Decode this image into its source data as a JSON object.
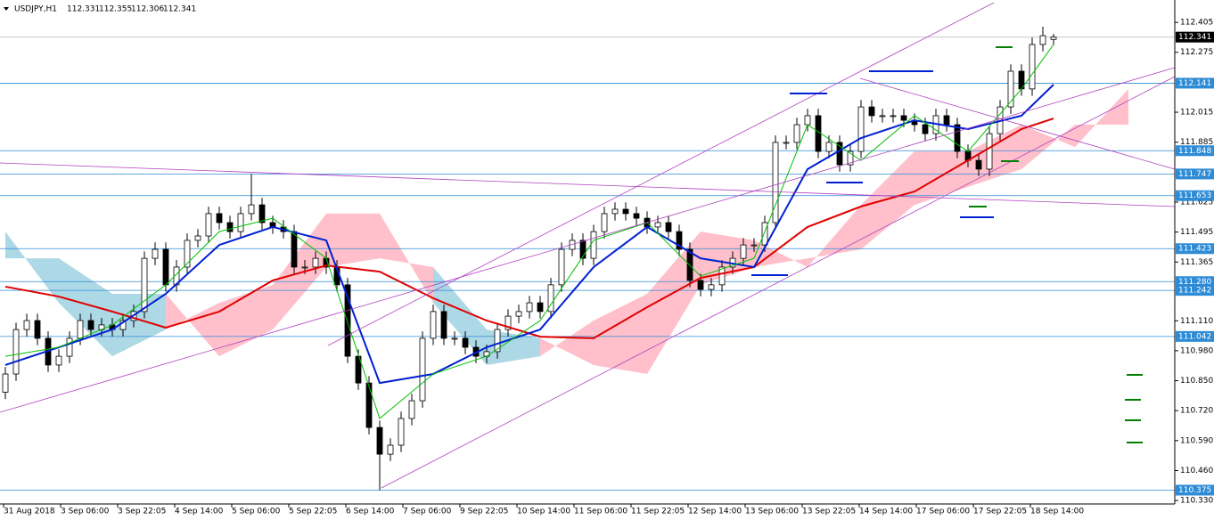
{
  "chart_data": {
    "type": "candlestick",
    "symbol": "USDJPY,H1",
    "ylim": [
      110.315,
      112.502
    ],
    "yticks": [
      112.405,
      112.275,
      112.015,
      111.885,
      111.625,
      111.495,
      111.365,
      {
        "value": 111.11,
        "label": "111.110"
      },
      {
        "value": 110.98,
        "label": "110.980"
      },
      {
        "value": 110.85,
        "label": "110.850"
      },
      {
        "value": 110.72,
        "label": "110.720"
      },
      {
        "value": 110.59,
        "label": "110.590"
      },
      {
        "value": 110.46,
        "label": "110.460"
      },
      {
        "value": 110.33,
        "label": "110.330"
      }
    ],
    "xlabels": [
      "31 Aug 2018",
      "3 Sep 06:00",
      "3 Sep 22:05",
      "4 Sep 14:00",
      "5 Sep 06:00",
      "5 Sep 22:05",
      "6 Sep 14:00",
      "7 Sep 06:00",
      "9 Sep 22:05",
      "10 Sep 14:00",
      "11 Sep 06:00",
      "11 Sep 22:05",
      "12 Sep 14:00",
      "13 Sep 06:00",
      "13 Sep 22:05",
      "14 Sep 14:00",
      "17 Sep 06:00",
      "17 Sep 22:05",
      "18 Sep 14:00"
    ],
    "up_color": "#ffffff",
    "down_color": "#000000",
    "ohlc": [
      [
        110.8,
        110.909,
        110.77,
        110.879
      ],
      [
        110.879,
        111.102,
        110.849,
        111.072
      ],
      [
        111.072,
        111.141,
        111.042,
        111.111
      ],
      [
        111.111,
        111.141,
        111.004,
        111.034
      ],
      [
        111.034,
        111.064,
        110.888,
        110.918
      ],
      [
        110.918,
        110.986,
        110.888,
        110.956
      ],
      [
        110.956,
        111.064,
        110.926,
        111.034
      ],
      [
        111.034,
        111.141,
        111.004,
        111.111
      ],
      [
        111.111,
        111.141,
        111.042,
        111.072
      ],
      [
        111.072,
        111.122,
        111.042,
        111.092
      ],
      [
        111.092,
        111.122,
        111.042,
        111.072
      ],
      [
        111.072,
        111.141,
        111.042,
        111.111
      ],
      [
        111.111,
        111.18,
        111.081,
        111.15
      ],
      [
        111.15,
        111.411,
        111.12,
        111.381
      ],
      [
        111.381,
        111.45,
        111.351,
        111.42
      ],
      [
        111.42,
        111.45,
        111.236,
        111.266
      ],
      [
        111.266,
        111.373,
        111.236,
        111.343
      ],
      [
        111.343,
        111.489,
        111.313,
        111.459
      ],
      [
        111.459,
        111.508,
        111.429,
        111.478
      ],
      [
        111.478,
        111.605,
        111.448,
        111.575
      ],
      [
        111.575,
        111.605,
        111.506,
        111.536
      ],
      [
        111.536,
        111.566,
        111.467,
        111.497
      ],
      [
        111.497,
        111.605,
        111.467,
        111.575
      ],
      [
        111.575,
        111.747,
        111.545,
        111.613
      ],
      [
        111.613,
        111.643,
        111.506,
        111.536
      ],
      [
        111.536,
        111.566,
        111.487,
        111.517
      ],
      [
        111.517,
        111.547,
        111.467,
        111.497
      ],
      [
        111.497,
        111.527,
        111.313,
        111.343
      ],
      [
        111.343,
        111.373,
        111.313,
        111.343
      ],
      [
        111.343,
        111.411,
        111.313,
        111.381
      ],
      [
        111.381,
        111.411,
        111.313,
        111.343
      ],
      [
        111.343,
        111.373,
        111.236,
        111.266
      ],
      [
        111.266,
        111.296,
        110.926,
        110.956
      ],
      [
        110.956,
        110.986,
        110.81,
        110.84
      ],
      [
        110.84,
        110.87,
        110.617,
        110.647
      ],
      [
        110.647,
        110.677,
        110.375,
        110.531
      ],
      [
        110.531,
        110.6,
        110.501,
        110.57
      ],
      [
        110.57,
        110.716,
        110.54,
        110.686
      ],
      [
        110.686,
        110.793,
        110.656,
        110.763
      ],
      [
        110.763,
        111.064,
        110.733,
        111.034
      ],
      [
        111.034,
        111.18,
        111.004,
        111.15
      ],
      [
        111.15,
        111.18,
        111.004,
        111.034
      ],
      [
        111.034,
        111.064,
        111.004,
        111.034
      ],
      [
        111.034,
        111.064,
        110.965,
        110.995
      ],
      [
        110.995,
        111.025,
        110.926,
        110.956
      ],
      [
        110.956,
        111.006,
        110.926,
        110.976
      ],
      [
        110.976,
        111.102,
        110.946,
        111.072
      ],
      [
        111.072,
        111.16,
        111.042,
        111.13
      ],
      [
        111.13,
        111.18,
        111.1,
        111.15
      ],
      [
        111.15,
        111.218,
        111.12,
        111.188
      ],
      [
        111.188,
        111.218,
        111.12,
        111.15
      ],
      [
        111.15,
        111.296,
        111.12,
        111.266
      ],
      [
        111.266,
        111.45,
        111.236,
        111.42
      ],
      [
        111.42,
        111.489,
        111.39,
        111.459
      ],
      [
        111.459,
        111.489,
        111.351,
        111.381
      ],
      [
        111.381,
        111.527,
        111.351,
        111.497
      ],
      [
        111.497,
        111.605,
        111.467,
        111.575
      ],
      [
        111.575,
        111.624,
        111.545,
        111.594
      ],
      [
        111.594,
        111.624,
        111.545,
        111.575
      ],
      [
        111.575,
        111.605,
        111.525,
        111.555
      ],
      [
        111.555,
        111.585,
        111.487,
        111.517
      ],
      [
        111.517,
        111.566,
        111.487,
        111.536
      ],
      [
        111.536,
        111.566,
        111.467,
        111.497
      ],
      [
        111.497,
        111.527,
        111.39,
        111.42
      ],
      [
        111.42,
        111.45,
        111.255,
        111.285
      ],
      [
        111.285,
        111.315,
        111.216,
        111.246
      ],
      [
        111.246,
        111.296,
        111.216,
        111.266
      ],
      [
        111.266,
        111.373,
        111.236,
        111.343
      ],
      [
        111.343,
        111.411,
        111.313,
        111.381
      ],
      [
        111.381,
        111.469,
        111.351,
        111.439
      ],
      [
        111.439,
        111.469,
        111.409,
        111.439
      ],
      [
        111.439,
        111.566,
        111.409,
        111.536
      ],
      [
        111.536,
        111.914,
        111.506,
        111.884
      ],
      [
        111.884,
        111.914,
        111.854,
        111.884
      ],
      [
        111.884,
        111.991,
        111.854,
        111.961
      ],
      [
        111.961,
        112.03,
        111.931,
        112.0
      ],
      [
        112.0,
        112.03,
        111.815,
        111.845
      ],
      [
        111.845,
        111.914,
        111.815,
        111.884
      ],
      [
        111.884,
        111.914,
        111.757,
        111.787
      ],
      [
        111.787,
        111.875,
        111.757,
        111.845
      ],
      [
        111.845,
        112.068,
        111.815,
        112.038
      ],
      [
        112.038,
        112.068,
        111.97,
        112.0
      ],
      [
        112.0,
        112.03,
        111.97,
        112.0
      ],
      [
        112.0,
        112.03,
        111.97,
        112.0
      ],
      [
        112.0,
        112.03,
        111.95,
        111.98
      ],
      [
        111.98,
        112.01,
        111.931,
        111.961
      ],
      [
        111.961,
        111.991,
        111.892,
        111.922
      ],
      [
        111.922,
        112.03,
        111.892,
        112.0
      ],
      [
        112.0,
        112.03,
        111.931,
        111.961
      ],
      [
        111.961,
        111.991,
        111.815,
        111.845
      ],
      [
        111.845,
        111.875,
        111.776,
        111.806
      ],
      [
        111.806,
        111.836,
        111.738,
        111.768
      ],
      [
        111.768,
        111.952,
        111.738,
        111.922
      ],
      [
        111.922,
        112.068,
        111.892,
        112.038
      ],
      [
        112.038,
        112.223,
        112.008,
        112.193
      ],
      [
        112.193,
        112.223,
        112.086,
        112.116
      ],
      [
        112.116,
        112.339,
        112.086,
        112.309
      ],
      [
        112.309,
        112.386,
        112.279,
        112.347
      ],
      [
        112.331,
        112.355,
        112.306,
        112.341
      ]
    ],
    "cloud": {
      "x": [
        0,
        5,
        10,
        15,
        20,
        25,
        30,
        35,
        40,
        45,
        50,
        55,
        60,
        65,
        70,
        75,
        80,
        85,
        90,
        95,
        100,
        105
      ],
      "span_a": [
        111.497,
        111.188,
        110.956,
        111.072,
        111.188,
        111.266,
        111.575,
        111.575,
        111.188,
        110.918,
        110.956,
        111.111,
        111.227,
        111.497,
        111.459,
        111.343,
        111.613,
        111.845,
        111.845,
        111.961,
        111.864,
        112.116
      ],
      "span_b": [
        111.381,
        111.381,
        111.227,
        111.227,
        110.956,
        111.072,
        111.343,
        111.381,
        111.343,
        111.072,
        111.034,
        110.918,
        110.879,
        111.266,
        111.343,
        111.381,
        111.42,
        111.613,
        111.691,
        111.768,
        111.961,
        111.961
      ],
      "up_color": "#ffc0cb",
      "down_color": "#add8e6"
    },
    "series": [
      {
        "color": "#e00000",
        "x": [
          0,
          5,
          10,
          15,
          20,
          25,
          30,
          35,
          40,
          45,
          50,
          55,
          60,
          65,
          70,
          75,
          80,
          85,
          90,
          95,
          98
        ],
        "values": [
          111.258,
          111.215,
          111.15,
          111.08,
          111.15,
          111.285,
          111.35,
          111.323,
          111.208,
          111.111,
          111.041,
          111.034,
          111.169,
          111.296,
          111.343,
          111.517,
          111.606,
          111.671,
          111.806,
          111.942,
          111.988
        ]
      },
      {
        "color": "#0020d0",
        "x": [
          0,
          5,
          10,
          15,
          20,
          25,
          30,
          35,
          40,
          45,
          50,
          55,
          60,
          65,
          70,
          75,
          80,
          85,
          90,
          95,
          98
        ],
        "values": [
          110.918,
          110.995,
          111.072,
          111.227,
          111.439,
          111.517,
          111.459,
          110.84,
          110.879,
          110.995,
          111.072,
          111.343,
          111.517,
          111.381,
          111.343,
          111.768,
          111.903,
          111.98,
          111.942,
          112.0,
          112.135
        ]
      },
      {
        "color": "#00c000",
        "x": [
          0,
          5,
          10,
          15,
          20,
          25,
          30,
          35,
          40,
          45,
          50,
          55,
          60,
          65,
          70,
          75,
          80,
          85,
          90,
          95,
          98
        ],
        "values": [
          110.956,
          110.995,
          111.092,
          111.266,
          111.497,
          111.555,
          111.381,
          110.686,
          110.879,
          110.956,
          111.111,
          111.459,
          111.536,
          111.304,
          111.381,
          111.961,
          111.806,
          112.0,
          111.845,
          112.116,
          112.309
        ]
      }
    ],
    "levels": [
      112.141,
      111.848,
      111.747,
      111.653,
      111.423,
      {
        "value": 111.28,
        "label": "111.280"
      },
      111.242,
      111.042,
      110.375
    ],
    "level_color": "#2e8bd6",
    "current_price": 112.341
  }
}
